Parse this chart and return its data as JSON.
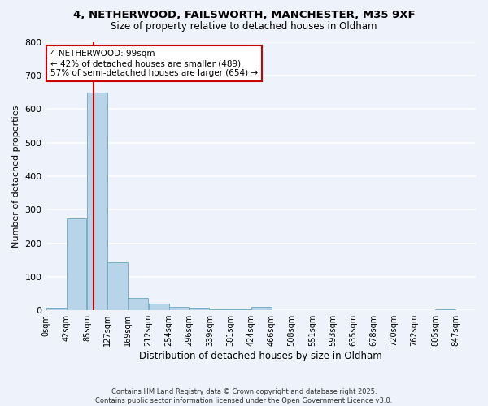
{
  "title_line1": "4, NETHERWOOD, FAILSWORTH, MANCHESTER, M35 9XF",
  "title_line2": "Size of property relative to detached houses in Oldham",
  "xlabel": "Distribution of detached houses by size in Oldham",
  "ylabel": "Number of detached properties",
  "bin_labels": [
    "0sqm",
    "42sqm",
    "85sqm",
    "127sqm",
    "169sqm",
    "212sqm",
    "254sqm",
    "296sqm",
    "339sqm",
    "381sqm",
    "424sqm",
    "466sqm",
    "508sqm",
    "551sqm",
    "593sqm",
    "635sqm",
    "678sqm",
    "720sqm",
    "762sqm",
    "805sqm",
    "847sqm"
  ],
  "bin_edges": [
    0,
    42,
    85,
    127,
    169,
    212,
    254,
    296,
    339,
    381,
    424,
    466,
    508,
    551,
    593,
    635,
    678,
    720,
    762,
    805,
    847
  ],
  "bar_heights": [
    8,
    275,
    648,
    143,
    37,
    20,
    10,
    8,
    3,
    3,
    10,
    1,
    0,
    0,
    0,
    0,
    0,
    0,
    0,
    2,
    0
  ],
  "bar_color": "#b8d4e8",
  "bar_edge_color": "#7aafc8",
  "ylim": [
    0,
    800
  ],
  "yticks": [
    0,
    100,
    200,
    300,
    400,
    500,
    600,
    700,
    800
  ],
  "property_size": 99,
  "vline_color": "#cc0000",
  "annotation_title": "4 NETHERWOOD: 99sqm",
  "annotation_line2": "← 42% of detached houses are smaller (489)",
  "annotation_line3": "57% of semi-detached houses are larger (654) →",
  "annotation_box_color": "#ffffff",
  "annotation_box_edge": "#cc0000",
  "footnote1": "Contains HM Land Registry data © Crown copyright and database right 2025.",
  "footnote2": "Contains public sector information licensed under the Open Government Licence v3.0.",
  "background_color": "#eef2fb",
  "grid_color": "#ffffff"
}
